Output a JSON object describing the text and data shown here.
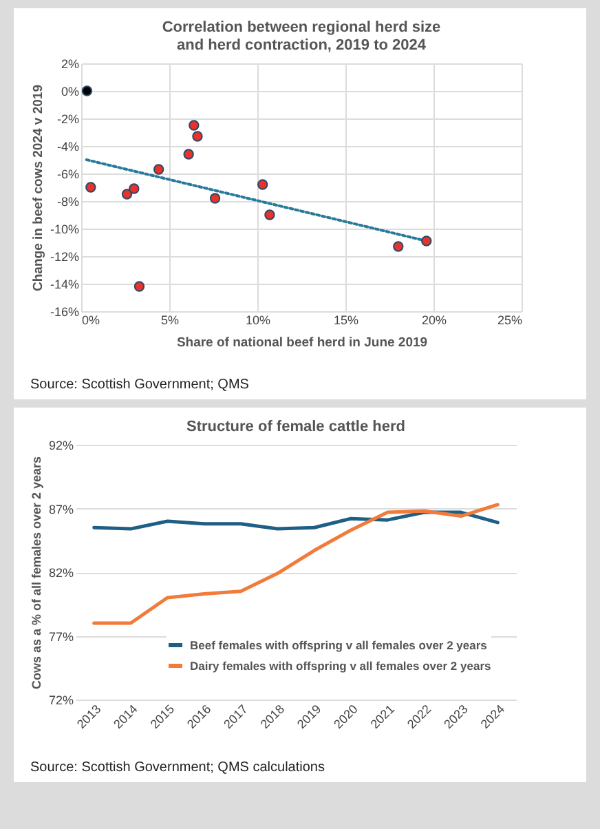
{
  "chart_data": [
    {
      "type": "scatter",
      "title": "Correlation between regional herd size and herd contraction, 2019 to 2024",
      "xlabel": "Share of national beef herd in June 2019",
      "ylabel": "Change in beef cows 2024 v 2019",
      "series": [
        {
          "type": "scatter",
          "marker": "circle",
          "x": [
            0.33,
            0.54,
            2.6,
            3.0,
            3.3,
            4.4,
            6.1,
            6.4,
            6.6,
            7.6,
            10.3,
            10.7,
            18.0,
            19.6
          ],
          "values": [
            0,
            -7.0,
            -7.5,
            -7.1,
            -14.2,
            -5.7,
            -4.6,
            -2.5,
            -3.3,
            -7.8,
            -6.8,
            -9.0,
            -11.3,
            -10.9
          ],
          "colors": [
            "#000000",
            "#e8322a",
            "#e8322a",
            "#e8322a",
            "#e8322a",
            "#e8322a",
            "#e8322a",
            "#e8322a",
            "#e8322a",
            "#e8322a",
            "#e8322a",
            "#e8322a",
            "#e8322a",
            "#e8322a"
          ]
        },
        {
          "type": "line",
          "x": [
            0.3,
            19.6
          ],
          "values": [
            -5.0,
            -10.9
          ],
          "color": "#2a7a9a",
          "line_style": "dotted"
        }
      ],
      "xlim": [
        0,
        25
      ],
      "xticks": [
        {
          "value": 0,
          "label": "0%"
        },
        {
          "value": 5,
          "label": "5%"
        },
        {
          "value": 10,
          "label": "10%"
        },
        {
          "value": 15,
          "label": "15%"
        },
        {
          "value": 20,
          "label": "20%"
        },
        {
          "value": 25,
          "label": "25%"
        }
      ],
      "ylim": [
        -16,
        2
      ],
      "yticks": [
        {
          "value": -16,
          "label": "-16%"
        },
        {
          "value": -14,
          "label": "-14%"
        },
        {
          "value": -12,
          "label": "-12%"
        },
        {
          "value": -10,
          "label": "-10%"
        },
        {
          "value": -8,
          "label": "-8%"
        },
        {
          "value": -6,
          "label": "-6%"
        },
        {
          "value": -4,
          "label": "-4%"
        },
        {
          "value": -2,
          "label": "-2%"
        },
        {
          "value": 0,
          "label": "0%"
        },
        {
          "value": 2,
          "label": "2%"
        }
      ],
      "grid": true,
      "annotations": [
        "Source: Scottish Government; QMS"
      ]
    },
    {
      "type": "line",
      "title": "Structure of female cattle herd",
      "ylabel": "Cows as a % of all females over 2 years",
      "categories": [
        "2013",
        "2014",
        "2015",
        "2016",
        "2017",
        "2018",
        "2019",
        "2020",
        "2021",
        "2022",
        "2023",
        "2024"
      ],
      "series": [
        {
          "name": "Beef females with offspring v all females over 2 years",
          "color": "#1f5f86",
          "values": [
            85.5,
            85.4,
            86.0,
            85.8,
            85.8,
            85.4,
            85.5,
            86.2,
            86.1,
            86.7,
            86.7,
            85.9
          ]
        },
        {
          "name": "Dairy females with offspring v all females over 2 years",
          "color": "#f07b3a",
          "values": [
            78.0,
            78.0,
            80.0,
            80.3,
            80.5,
            81.9,
            83.7,
            85.3,
            86.7,
            86.8,
            86.4,
            87.3
          ]
        }
      ],
      "ylim": [
        72,
        92
      ],
      "yticks": [
        {
          "value": 72,
          "label": "72%"
        },
        {
          "value": 77,
          "label": "77%"
        },
        {
          "value": 82,
          "label": "82%"
        },
        {
          "value": 87,
          "label": "87%"
        },
        {
          "value": 92,
          "label": "92%"
        }
      ],
      "grid": "y",
      "legend": "bottom right",
      "marker": "none",
      "line_style": "solid",
      "annotations": [
        "Source: Scottish Government; QMS calculations"
      ]
    }
  ]
}
